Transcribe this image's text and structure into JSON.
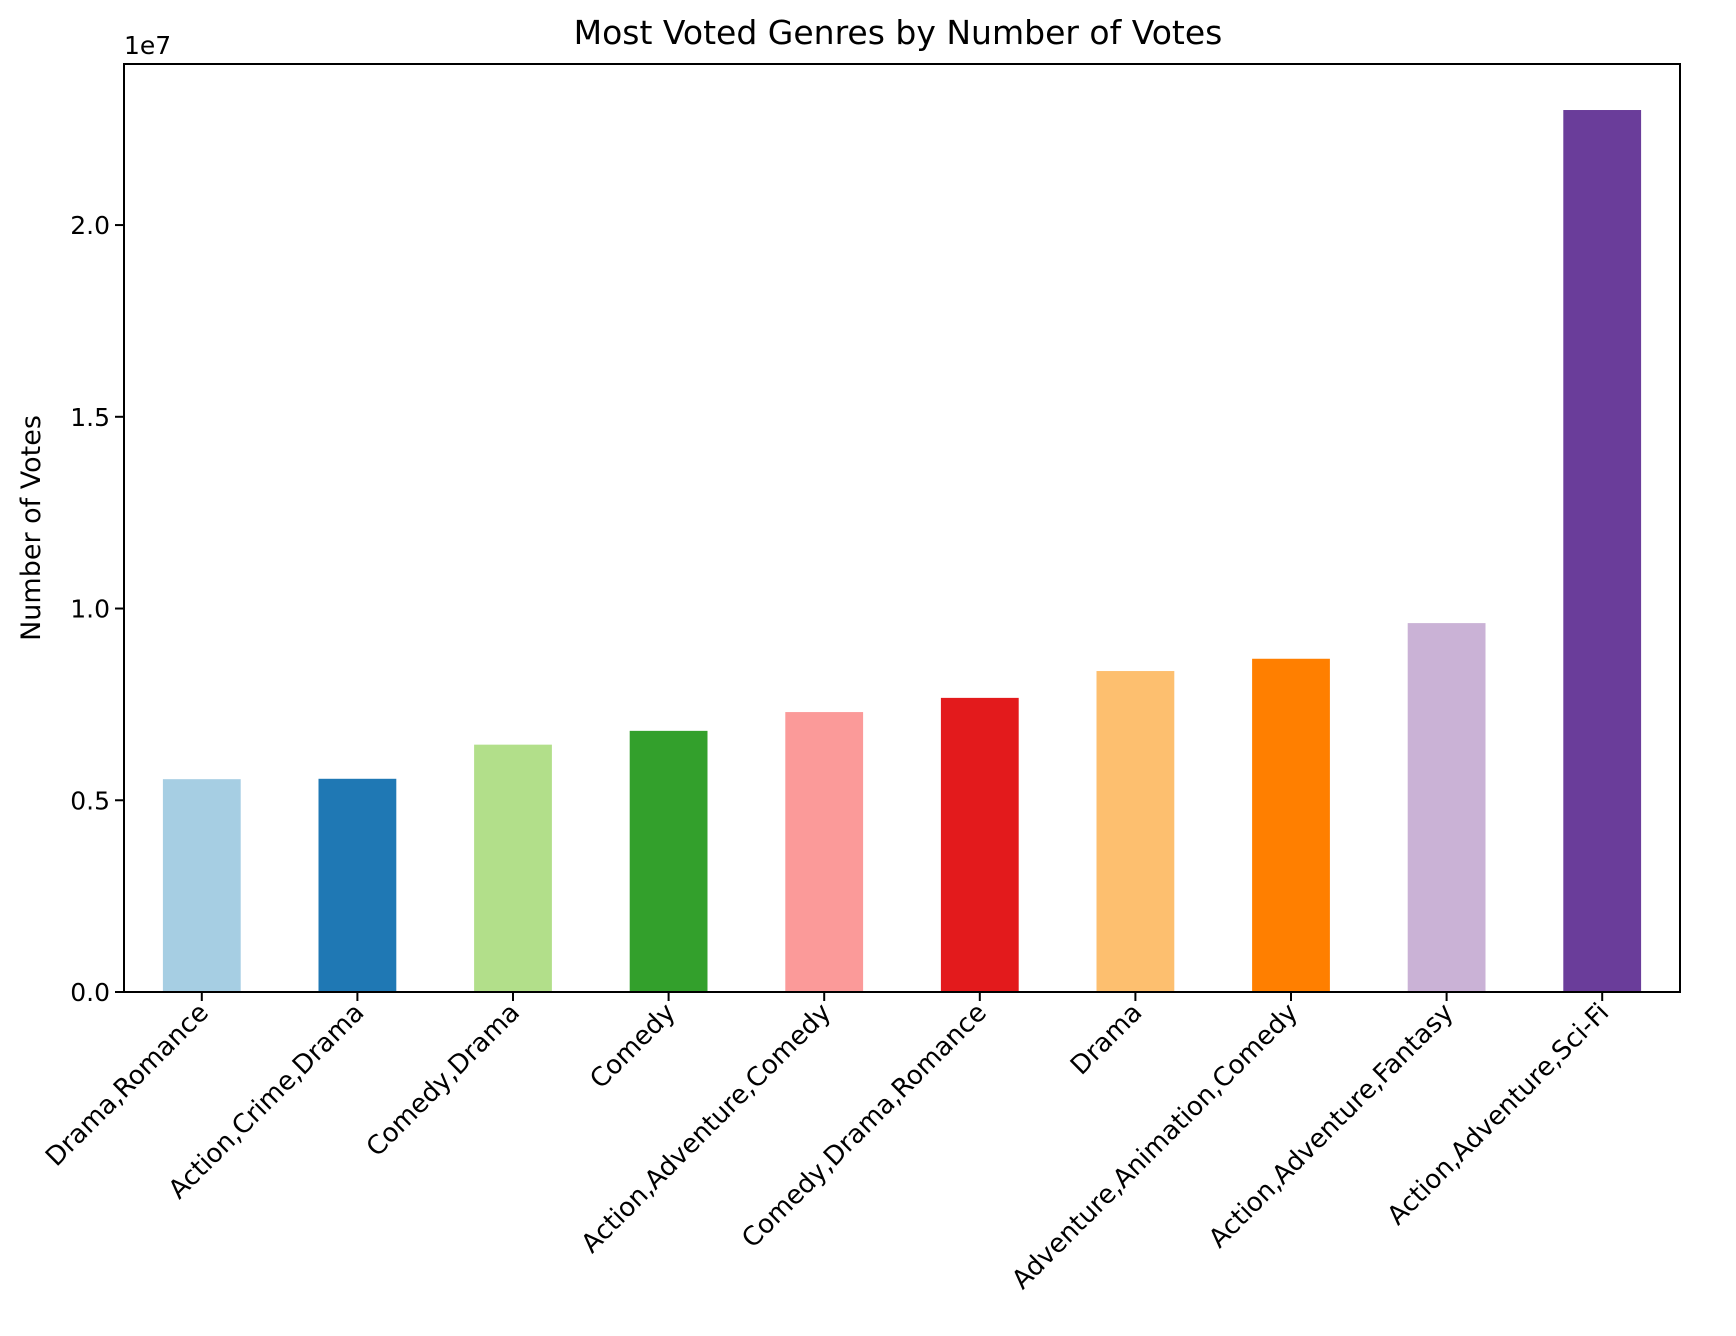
{
  "chart_data": {
    "type": "bar",
    "title": "Most Voted Genres by Number of Votes",
    "xlabel": "",
    "ylabel": "Number of Votes",
    "offset_label": "1e7",
    "categories": [
      "Drama,Romance",
      "Action,Crime,Drama",
      "Comedy,Drama",
      "Comedy",
      "Action,Adventure,Comedy",
      "Comedy,Drama,Romance",
      "Drama",
      "Adventure,Animation,Comedy",
      "Action,Adventure,Fantasy",
      "Action,Adventure,Sci-Fi"
    ],
    "values": [
      5550000,
      5560000,
      6450000,
      6810000,
      7300000,
      7670000,
      8370000,
      8690000,
      9620000,
      23000000
    ],
    "colors": [
      "#a6cee3",
      "#1f78b4",
      "#b2df8a",
      "#33a02c",
      "#fb9a99",
      "#e31a1c",
      "#fdbf6f",
      "#ff7f00",
      "#cab2d6",
      "#6a3d9a"
    ],
    "ylim": [
      0,
      24200000
    ],
    "yticks": [
      0,
      5000000,
      10000000,
      15000000,
      20000000
    ],
    "ytick_labels": [
      "0.0",
      "0.5",
      "1.0",
      "1.5",
      "2.0"
    ],
    "grid": false,
    "legend": "none"
  }
}
